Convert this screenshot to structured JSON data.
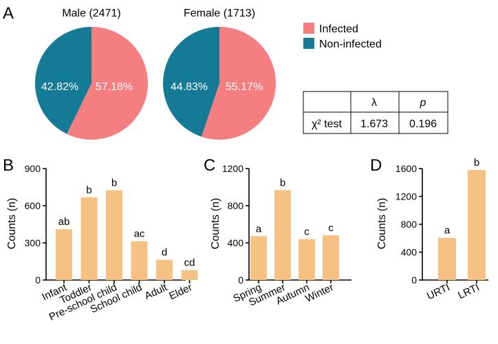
{
  "colors": {
    "infected": "#F47E80",
    "non_infected": "#147A95",
    "bar": "#F5C284",
    "axis": "#000000"
  },
  "panel_letters": [
    "A",
    "B",
    "C",
    "D"
  ],
  "chart_data": [
    {
      "panel": "A",
      "type": "pie",
      "title": "Male (2471)",
      "categories": [
        "Infected",
        "Non-infected"
      ],
      "values": [
        57.18,
        42.82
      ],
      "value_labels": [
        "57.18%",
        "42.82%"
      ]
    },
    {
      "panel": "A",
      "type": "pie",
      "title": "Female (1713)",
      "categories": [
        "Infected",
        "Non-infected"
      ],
      "values": [
        55.17,
        44.83
      ],
      "value_labels": [
        "55.17%",
        "44.83%"
      ]
    },
    {
      "panel": "A",
      "type": "table",
      "columns": [
        "",
        "λ",
        "p"
      ],
      "rows": [
        [
          "χ² test",
          "1.673",
          "0.196"
        ]
      ]
    },
    {
      "panel": "B",
      "type": "bar",
      "ylabel": "Counts (n)",
      "ylim": [
        0,
        900
      ],
      "yticks": [
        0,
        300,
        600,
        900
      ],
      "categories": [
        "Infant",
        "Toddler",
        "Pre-school child",
        "School child",
        "Adult",
        "Elder"
      ],
      "values": [
        410,
        668,
        725,
        313,
        163,
        80
      ],
      "sig_labels": [
        "ab",
        "b",
        "b",
        "ac",
        "d",
        "cd"
      ]
    },
    {
      "panel": "C",
      "type": "bar",
      "ylabel": "Counts (n)",
      "ylim": [
        0,
        1200
      ],
      "yticks": [
        0,
        400,
        800,
        1200
      ],
      "categories": [
        "Spring",
        "Summer",
        "Autumn",
        "Winter"
      ],
      "values": [
        472,
        968,
        440,
        482
      ],
      "sig_labels": [
        "a",
        "b",
        "c",
        "c"
      ]
    },
    {
      "panel": "D",
      "type": "bar",
      "ylabel": "Counts (n)",
      "ylim": [
        0,
        1600
      ],
      "yticks": [
        0,
        400,
        800,
        1200,
        1600
      ],
      "categories": [
        "URTI",
        "LRTI"
      ],
      "values": [
        605,
        1580
      ],
      "sig_labels": [
        "a",
        "b"
      ]
    }
  ]
}
